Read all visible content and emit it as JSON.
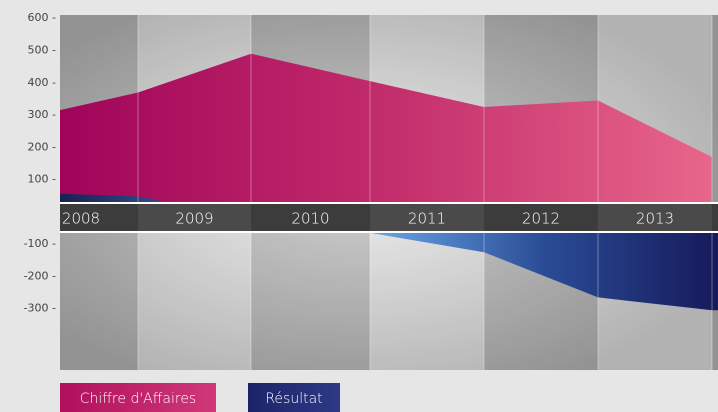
{
  "chart_data": {
    "type": "area",
    "categories": [
      "2008",
      "2009",
      "2010",
      "2011",
      "2012",
      "2013",
      null
    ],
    "series": [
      {
        "name": "Chiffre d'Affaires",
        "color": "#b0105e",
        "values": [
          290,
          370,
          490,
          405,
          325,
          345,
          170
        ]
      },
      {
        "name": "Résultat",
        "color": "#26307a",
        "values": [
          60,
          48,
          -20,
          -65,
          -125,
          -265,
          -305
        ]
      }
    ],
    "ylim": [
      -490,
      610
    ],
    "yticks": [
      {
        "value": 600,
        "label": "600 -"
      },
      {
        "value": 500,
        "label": "500 -"
      },
      {
        "value": 400,
        "label": "400 -"
      },
      {
        "value": 300,
        "label": "300 -"
      },
      {
        "value": 200,
        "label": "200 -"
      },
      {
        "value": 100,
        "label": "100 -"
      },
      {
        "value": -100,
        "label": "-100 -"
      },
      {
        "value": -200,
        "label": "-200 -"
      },
      {
        "value": -300,
        "label": "-300 -"
      }
    ]
  }
}
